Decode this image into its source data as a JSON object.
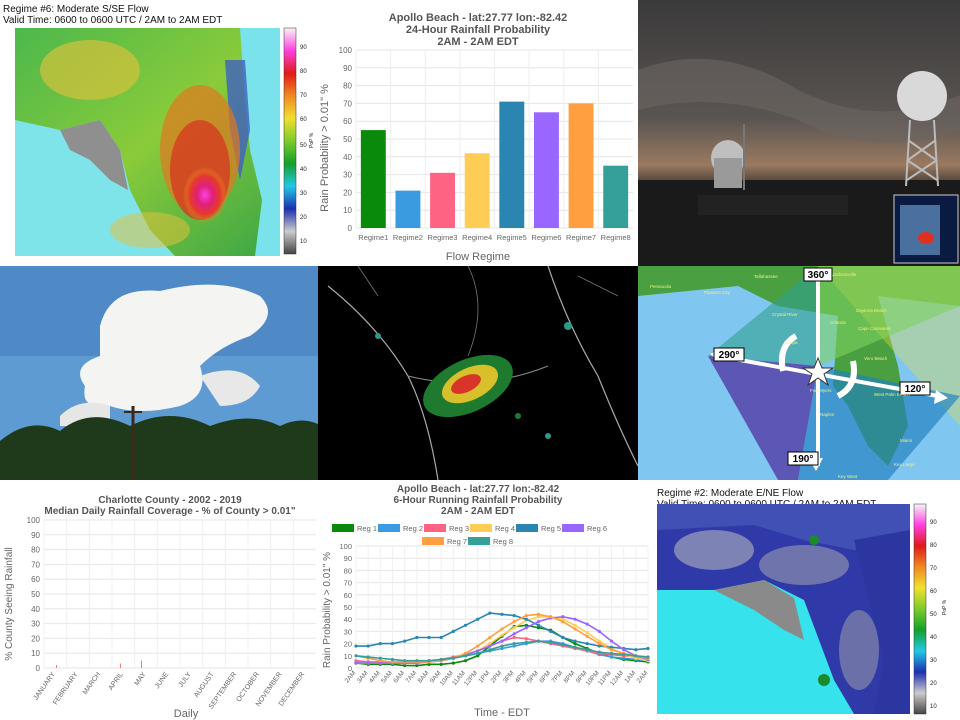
{
  "maps": {
    "regime6": {
      "line1": "Regime #6: Moderate S/SE Flow",
      "line2": "Valid Time: 0600 to 0600 UTC / 2AM to 2AM EDT",
      "colorbar_ticks": [
        "90",
        "80",
        "70",
        "60",
        "50",
        "40",
        "30",
        "20",
        "10"
      ],
      "colorbar_label": "PoP %"
    },
    "regime2": {
      "line1": "Regime #2: Moderate E/NE Flow",
      "line2": "Valid Time: 0600 to 0600 UTC / 2AM to 2AM EDT",
      "colorbar_ticks": [
        "90",
        "80",
        "70",
        "60",
        "50",
        "40",
        "30",
        "20",
        "10"
      ],
      "colorbar_label": "PoP %"
    }
  },
  "compass": {
    "labels": [
      "360°",
      "290°",
      "120°",
      "190°"
    ],
    "cities": [
      "Pensacola",
      "Panama City",
      "Tallahassee",
      "Jacksonville",
      "Crystal River",
      "Orlando",
      "Tampa",
      "Daytona Beach",
      "Cape Canaveral",
      "Vero Beach",
      "Fort Myers",
      "Naples",
      "West Palm Beach",
      "Miami",
      "Key Largo",
      "Key West"
    ]
  },
  "chart_data": [
    {
      "type": "bar",
      "title": "Apollo Beach - lat:27.77  lon:-82.42",
      "subtitle1": "24-Hour Rainfall Probability",
      "subtitle2": "2AM - 2AM EDT",
      "xlabel": "Flow Regime",
      "ylabel": "Rain Probability > 0.01\" %",
      "ylim": [
        0,
        100
      ],
      "yticks": [
        0,
        10,
        20,
        30,
        40,
        50,
        60,
        70,
        80,
        90,
        100
      ],
      "grid": true,
      "categories": [
        "Regime1",
        "Regime2",
        "Regime3",
        "Regime4",
        "Regime5",
        "Regime6",
        "Regime7",
        "Regime8"
      ],
      "values": [
        55,
        21,
        31,
        42,
        71,
        65,
        70,
        35
      ],
      "colors": [
        "#0a8a0a",
        "#3b9be0",
        "#ff6384",
        "#ffcd56",
        "#2a86b0",
        "#9966ff",
        "#ff9f40",
        "#35a09a"
      ]
    },
    {
      "type": "bar",
      "title": "Charlotte County - 2002 - 2019",
      "subtitle": "Median Daily Rainfall Coverage - % of County > 0.01\"",
      "xlabel": "Daily",
      "ylabel": "% County Seeing Rainfall",
      "ylim": [
        0,
        100
      ],
      "yticks": [
        0,
        10,
        20,
        30,
        40,
        50,
        60,
        70,
        80,
        90,
        100
      ],
      "months": [
        "JANUARY",
        "FEBRUARY",
        "MARCH",
        "APRIL",
        "MAY",
        "JUNE",
        "JULY",
        "AUGUST",
        "SEPTEMBER",
        "OCTOBER",
        "NOVEMBER",
        "DECEMBER"
      ],
      "color_scale": {
        "low": "#e8251a",
        "mid": "#f5a623",
        "high": "#2ca02c"
      },
      "daily_values": [
        0,
        0,
        0,
        0,
        0,
        0,
        0,
        0,
        0,
        0,
        0,
        0,
        0,
        0,
        0,
        0,
        2,
        0,
        0,
        0,
        0,
        0,
        0,
        0,
        0,
        0,
        0,
        0,
        0,
        0,
        0,
        0,
        0,
        0,
        0,
        0,
        0,
        0,
        0,
        0,
        0,
        0,
        0,
        0,
        0,
        0,
        0,
        0,
        0,
        0,
        0,
        0,
        0,
        0,
        0,
        0,
        0,
        0,
        0,
        0,
        0,
        0,
        0,
        0,
        0,
        0,
        0,
        0,
        0,
        0,
        0,
        0,
        0,
        0,
        0,
        0,
        0,
        0,
        0,
        0,
        0,
        0,
        0,
        0,
        0,
        0,
        0,
        0,
        0,
        0,
        0,
        0,
        0,
        0,
        0,
        0,
        0,
        0,
        0,
        0,
        3,
        0,
        0,
        0,
        0,
        0,
        0,
        0,
        0,
        0,
        0,
        0,
        0,
        0,
        0,
        0,
        0,
        0,
        0,
        0,
        0,
        0,
        0,
        0,
        0,
        0,
        0,
        0,
        5,
        0,
        0,
        0,
        0,
        0,
        0,
        0,
        0,
        0,
        0,
        0,
        0,
        0,
        0,
        0,
        0,
        0,
        0,
        0,
        0,
        0,
        0,
        0,
        0,
        0,
        0,
        0,
        0,
        0,
        0,
        0,
        0,
        0,
        0,
        0,
        0,
        0,
        0,
        0,
        0,
        0,
        0,
        0,
        0,
        0,
        0,
        0,
        0,
        0,
        0,
        0,
        0,
        0,
        0,
        0,
        0,
        0,
        0,
        0,
        0,
        0,
        0,
        0,
        0,
        0,
        0,
        0,
        0,
        0,
        0,
        0,
        0,
        0,
        0,
        0,
        0,
        0,
        0,
        0,
        0,
        0,
        0,
        0,
        0,
        0,
        0,
        0,
        0,
        0,
        0,
        0,
        0,
        0,
        0,
        0,
        0,
        0,
        0,
        0,
        0,
        0,
        0,
        0,
        0,
        0,
        0,
        0,
        0,
        0,
        0,
        0,
        0,
        0,
        0,
        0,
        0,
        0,
        0,
        0,
        0,
        0,
        0,
        0,
        0,
        0,
        0,
        0,
        0,
        0,
        0,
        0,
        0,
        0,
        0,
        0,
        0,
        0,
        0,
        0,
        0,
        0,
        0,
        0,
        0,
        0,
        0,
        0,
        0,
        0,
        0,
        0,
        0,
        0,
        0,
        0,
        0,
        0,
        0,
        0,
        0,
        0,
        0,
        0,
        0,
        0,
        0,
        0,
        0,
        0,
        0,
        0,
        0,
        0,
        0,
        0,
        0,
        0,
        0,
        0,
        0,
        0,
        0,
        0,
        0,
        0,
        0,
        0,
        0,
        0,
        0,
        0,
        0,
        0,
        0,
        0,
        0,
        0,
        0,
        0,
        0,
        0,
        0,
        0,
        0,
        0,
        0,
        0,
        0,
        0,
        0,
        0,
        0,
        0,
        0,
        0,
        0,
        0,
        0,
        0,
        0,
        0,
        0,
        0,
        0,
        0,
        0,
        0,
        0,
        0
      ]
    },
    {
      "type": "line",
      "title": "Apollo Beach - lat:27.77  lon:-82.42",
      "subtitle1": "6-Hour Running Rainfall Probability",
      "subtitle2": "2AM - 2AM EDT",
      "xlabel": "Time - EDT",
      "ylabel": "Rain Probability > 0.01\" %",
      "ylim": [
        0,
        100
      ],
      "yticks": [
        0,
        10,
        20,
        30,
        40,
        50,
        60,
        70,
        80,
        90,
        100
      ],
      "grid": true,
      "legend_position": "top",
      "x": [
        "2AM",
        "3AM",
        "4AM",
        "5AM",
        "6AM",
        "7AM",
        "8AM",
        "9AM",
        "10AM",
        "11AM",
        "12PM",
        "1PM",
        "2PM",
        "3PM",
        "4PM",
        "5PM",
        "6PM",
        "7PM",
        "8PM",
        "9PM",
        "10PM",
        "11PM",
        "12AM",
        "1AM",
        "2AM"
      ],
      "series": [
        {
          "name": "Reg 1",
          "color": "#0a8a0a",
          "values": [
            4,
            3,
            3,
            3,
            2,
            2,
            3,
            3,
            4,
            6,
            10,
            18,
            26,
            34,
            35,
            33,
            31,
            25,
            20,
            16,
            12,
            9,
            7,
            6,
            5
          ]
        },
        {
          "name": "Reg 2",
          "color": "#3b9be0",
          "values": [
            5,
            5,
            4,
            4,
            4,
            5,
            5,
            6,
            8,
            10,
            12,
            14,
            16,
            18,
            20,
            22,
            22,
            20,
            17,
            14,
            11,
            9,
            8,
            7,
            6
          ]
        },
        {
          "name": "Reg 3",
          "color": "#ff6384",
          "values": [
            6,
            5,
            5,
            5,
            5,
            5,
            6,
            7,
            9,
            11,
            14,
            18,
            22,
            25,
            24,
            22,
            20,
            18,
            16,
            14,
            12,
            11,
            10,
            9,
            8
          ]
        },
        {
          "name": "Reg 4",
          "color": "#ffcd56",
          "values": [
            4,
            4,
            4,
            4,
            4,
            4,
            5,
            6,
            8,
            11,
            14,
            20,
            27,
            33,
            39,
            42,
            42,
            40,
            35,
            29,
            22,
            16,
            11,
            8,
            6
          ]
        },
        {
          "name": "Reg 5",
          "color": "#2a86b0",
          "values": [
            18,
            18,
            20,
            20,
            22,
            25,
            25,
            25,
            30,
            35,
            40,
            45,
            44,
            43,
            40,
            35,
            30,
            25,
            22,
            20,
            18,
            17,
            16,
            15,
            16
          ]
        },
        {
          "name": "Reg 6",
          "color": "#9966ff",
          "values": [
            4,
            4,
            4,
            4,
            4,
            4,
            5,
            6,
            8,
            11,
            14,
            18,
            22,
            28,
            33,
            38,
            41,
            42,
            40,
            36,
            30,
            22,
            15,
            10,
            7
          ]
        },
        {
          "name": "Reg 7",
          "color": "#ff9f40",
          "values": [
            10,
            8,
            6,
            5,
            5,
            5,
            5,
            6,
            8,
            12,
            18,
            25,
            32,
            38,
            43,
            44,
            42,
            38,
            32,
            26,
            20,
            15,
            12,
            10,
            8
          ]
        },
        {
          "name": "Reg 8",
          "color": "#35a09a",
          "values": [
            10,
            9,
            8,
            7,
            6,
            6,
            6,
            7,
            8,
            10,
            12,
            15,
            18,
            20,
            21,
            22,
            21,
            19,
            17,
            15,
            13,
            12,
            11,
            10,
            9
          ]
        }
      ]
    }
  ]
}
